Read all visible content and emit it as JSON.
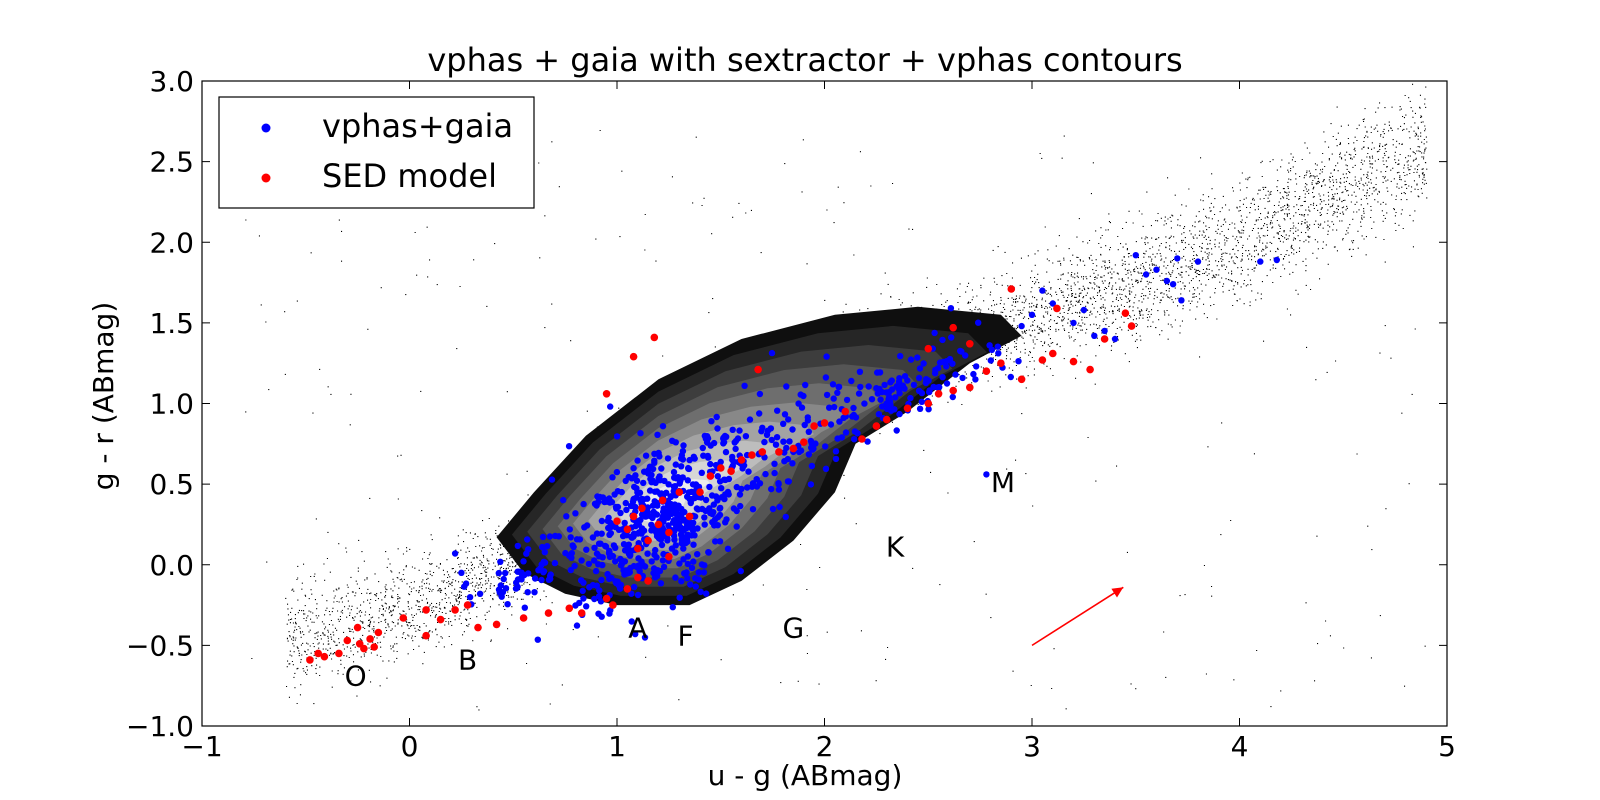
{
  "chart_data": {
    "type": "scatter",
    "title": "vphas + gaia with sextractor + vphas contours",
    "xlabel": "u - g (ABmag)",
    "ylabel": "g - r (ABmag)",
    "xlim": [
      -1,
      5
    ],
    "ylim": [
      -1.0,
      3.0
    ],
    "xticks": [
      -1,
      0,
      1,
      2,
      3,
      4,
      5
    ],
    "xtick_labels": [
      "−1",
      "0",
      "1",
      "2",
      "3",
      "4",
      "5"
    ],
    "yticks": [
      -1.0,
      -0.5,
      0.0,
      0.5,
      1.0,
      1.5,
      2.0,
      2.5,
      3.0
    ],
    "ytick_labels": [
      "−1.0",
      "−0.5",
      "0.0",
      "0.5",
      "1.0",
      "1.5",
      "2.0",
      "2.5",
      "3.0"
    ],
    "grid": false,
    "legend": {
      "placement": "top-left",
      "entries": [
        {
          "label": "vphas+gaia",
          "color": "#0000ff"
        },
        {
          "label": "SED model",
          "color": "#ff0000"
        }
      ]
    },
    "colors": {
      "vphas_gaia": "#0000ff",
      "sed_model": "#ff0000",
      "background_points": "#000000",
      "arrow": "#ff0000"
    },
    "background_points": {
      "description_in_data_units": true,
      "locus": [
        [
          -0.65,
          -0.52
        ],
        [
          0.0,
          -0.32
        ],
        [
          0.5,
          -0.05
        ],
        [
          1.0,
          0.35
        ],
        [
          1.5,
          0.72
        ],
        [
          2.0,
          1.05
        ],
        [
          2.5,
          1.3
        ],
        [
          3.0,
          1.5
        ],
        [
          3.5,
          1.7
        ],
        [
          4.0,
          1.95
        ],
        [
          4.5,
          2.3
        ],
        [
          4.9,
          2.55
        ]
      ],
      "count": 6000
    },
    "contours": {
      "fill_levels": [
        "#0f0f0f",
        "#262626",
        "#3d3d3d",
        "#555555",
        "#6e6e6e",
        "#888888",
        "#a3a3a3",
        "#bdbdbd",
        "#d6d6d6",
        "#ececec"
      ],
      "outer": [
        [
          0.42,
          0.17
        ],
        [
          0.55,
          -0.05
        ],
        [
          0.75,
          -0.18
        ],
        [
          1.0,
          -0.25
        ],
        [
          1.35,
          -0.25
        ],
        [
          1.6,
          -0.1
        ],
        [
          1.85,
          0.15
        ],
        [
          2.05,
          0.45
        ],
        [
          2.15,
          0.75
        ],
        [
          2.4,
          0.95
        ],
        [
          2.7,
          1.25
        ],
        [
          2.95,
          1.42
        ],
        [
          2.85,
          1.55
        ],
        [
          2.45,
          1.6
        ],
        [
          2.05,
          1.55
        ],
        [
          1.6,
          1.4
        ],
        [
          1.2,
          1.15
        ],
        [
          0.85,
          0.8
        ],
        [
          0.6,
          0.45
        ],
        [
          0.42,
          0.17
        ]
      ]
    },
    "series": [
      {
        "name": "vphas+gaia",
        "color": "#0000ff",
        "clusters": [
          {
            "cx": 1.2,
            "cy": 0.25,
            "sx": 0.2,
            "sy": 0.22,
            "n": 520
          },
          {
            "cx": 1.75,
            "cy": 0.75,
            "sx": 0.22,
            "sy": 0.18,
            "n": 140
          },
          {
            "cx": 2.45,
            "cy": 1.12,
            "sx": 0.2,
            "sy": 0.12,
            "n": 110
          },
          {
            "cx": 0.6,
            "cy": -0.02,
            "sx": 0.15,
            "sy": 0.08,
            "n": 60
          }
        ],
        "values": [
          [
            0.22,
            0.07
          ],
          [
            0.25,
            -0.05
          ],
          [
            0.34,
            -0.18
          ],
          [
            0.45,
            -0.17
          ],
          [
            2.78,
            0.56
          ],
          [
            3.05,
            1.7
          ],
          [
            3.35,
            1.45
          ],
          [
            3.5,
            1.92
          ],
          [
            3.6,
            1.83
          ],
          [
            3.65,
            1.76
          ],
          [
            3.7,
            1.9
          ],
          [
            3.72,
            1.64
          ],
          [
            3.8,
            1.88
          ],
          [
            4.1,
            1.88
          ],
          [
            4.18,
            1.89
          ],
          [
            3.2,
            1.5
          ],
          [
            3.3,
            1.42
          ],
          [
            3.4,
            1.4
          ],
          [
            3.0,
            1.55
          ],
          [
            3.1,
            1.62
          ],
          [
            3.55,
            1.8
          ],
          [
            3.68,
            1.74
          ],
          [
            3.25,
            1.58
          ],
          [
            2.95,
            1.48
          ]
        ]
      },
      {
        "name": "SED model",
        "color": "#ff0000",
        "values": [
          [
            -0.48,
            -0.59
          ],
          [
            -0.44,
            -0.55
          ],
          [
            -0.41,
            -0.57
          ],
          [
            -0.34,
            -0.55
          ],
          [
            -0.3,
            -0.47
          ],
          [
            -0.25,
            -0.39
          ],
          [
            -0.24,
            -0.49
          ],
          [
            -0.22,
            -0.52
          ],
          [
            -0.19,
            -0.46
          ],
          [
            -0.17,
            -0.51
          ],
          [
            -0.15,
            -0.42
          ],
          [
            -0.03,
            -0.33
          ],
          [
            0.08,
            -0.44
          ],
          [
            0.08,
            -0.28
          ],
          [
            0.15,
            -0.34
          ],
          [
            0.22,
            -0.28
          ],
          [
            0.28,
            -0.25
          ],
          [
            0.33,
            -0.39
          ],
          [
            0.42,
            -0.37
          ],
          [
            0.55,
            -0.33
          ],
          [
            0.67,
            -0.3
          ],
          [
            0.77,
            -0.27
          ],
          [
            0.83,
            -0.3
          ],
          [
            0.95,
            -0.21
          ],
          [
            0.98,
            -0.25
          ],
          [
            1.0,
            0.27
          ],
          [
            1.05,
            0.22
          ],
          [
            1.08,
            0.3
          ],
          [
            1.1,
            0.1
          ],
          [
            1.12,
            0.35
          ],
          [
            1.15,
            0.15
          ],
          [
            1.2,
            0.25
          ],
          [
            1.22,
            0.4
          ],
          [
            1.25,
            0.05
          ],
          [
            1.3,
            0.45
          ],
          [
            1.35,
            0.3
          ],
          [
            1.4,
            0.45
          ],
          [
            1.45,
            0.55
          ],
          [
            1.5,
            0.6
          ],
          [
            1.55,
            0.58
          ],
          [
            1.6,
            0.65
          ],
          [
            1.65,
            0.68
          ],
          [
            1.7,
            0.7
          ],
          [
            1.78,
            0.7
          ],
          [
            1.85,
            0.72
          ],
          [
            1.9,
            0.76
          ],
          [
            1.95,
            0.86
          ],
          [
            2.0,
            0.88
          ],
          [
            2.1,
            0.95
          ],
          [
            2.18,
            0.78
          ],
          [
            2.25,
            0.86
          ],
          [
            2.3,
            0.9
          ],
          [
            2.4,
            0.97
          ],
          [
            2.5,
            1.0
          ],
          [
            2.55,
            1.06
          ],
          [
            2.62,
            1.08
          ],
          [
            2.7,
            1.1
          ],
          [
            2.78,
            1.2
          ],
          [
            2.85,
            1.25
          ],
          [
            2.9,
            1.71
          ],
          [
            2.95,
            1.15
          ],
          [
            3.05,
            1.27
          ],
          [
            3.1,
            1.31
          ],
          [
            3.2,
            1.26
          ],
          [
            3.28,
            1.21
          ],
          [
            3.35,
            1.4
          ],
          [
            3.45,
            1.56
          ],
          [
            3.48,
            1.48
          ],
          [
            0.95,
            1.06
          ],
          [
            1.08,
            1.29
          ],
          [
            1.18,
            1.41
          ],
          [
            1.68,
            1.21
          ],
          [
            2.5,
            1.34
          ],
          [
            2.62,
            1.47
          ],
          [
            2.7,
            1.37
          ],
          [
            3.12,
            1.59
          ],
          [
            1.25,
            0.2
          ],
          [
            1.15,
            -0.1
          ],
          [
            1.1,
            -0.08
          ],
          [
            1.05,
            -0.15
          ]
        ]
      }
    ],
    "annotations": [
      {
        "text": "O",
        "x": -0.26,
        "y": -0.75
      },
      {
        "text": "B",
        "x": 0.28,
        "y": -0.65
      },
      {
        "text": "A",
        "x": 1.1,
        "y": -0.45
      },
      {
        "text": "F",
        "x": 1.33,
        "y": -0.5
      },
      {
        "text": "G",
        "x": 1.85,
        "y": -0.45
      },
      {
        "text": "K",
        "x": 2.34,
        "y": 0.05
      },
      {
        "text": "M",
        "x": 2.86,
        "y": 0.45
      }
    ],
    "arrow": {
      "x0": 3.0,
      "y0": -0.5,
      "x1": 3.44,
      "y1": -0.14
    }
  }
}
